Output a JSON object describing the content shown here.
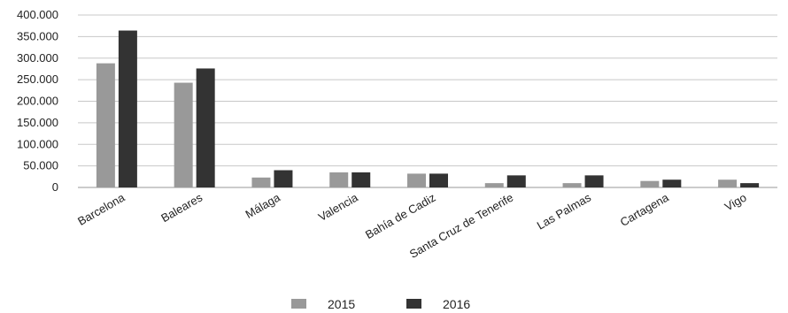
{
  "chart_data": {
    "type": "bar",
    "title": "",
    "xlabel": "",
    "ylabel": "",
    "categories": [
      "Barcelona",
      "Baleares",
      "Málaga",
      "Valencia",
      "Bahía de Cadiz",
      "Santa Cruz de Tenerife",
      "Las Palmas",
      "Cartagena",
      "Vigo"
    ],
    "series": [
      {
        "name": "2015",
        "color": "#999999",
        "values": [
          288000,
          243000,
          23000,
          35000,
          32000,
          10000,
          10000,
          15000,
          18000
        ]
      },
      {
        "name": "2016",
        "color": "#333333",
        "values": [
          364000,
          276000,
          40000,
          35000,
          32000,
          28000,
          28000,
          18000,
          10000
        ]
      }
    ],
    "ylim": [
      0,
      400000
    ],
    "yticks": [
      0,
      50000,
      100000,
      150000,
      200000,
      250000,
      300000,
      350000,
      400000
    ],
    "ytick_labels": [
      "0",
      "50.000",
      "100.000",
      "150.000",
      "200.000",
      "250.000",
      "300.000",
      "350.000",
      "400.000"
    ],
    "grid": true,
    "legend_position": "bottom-center"
  }
}
